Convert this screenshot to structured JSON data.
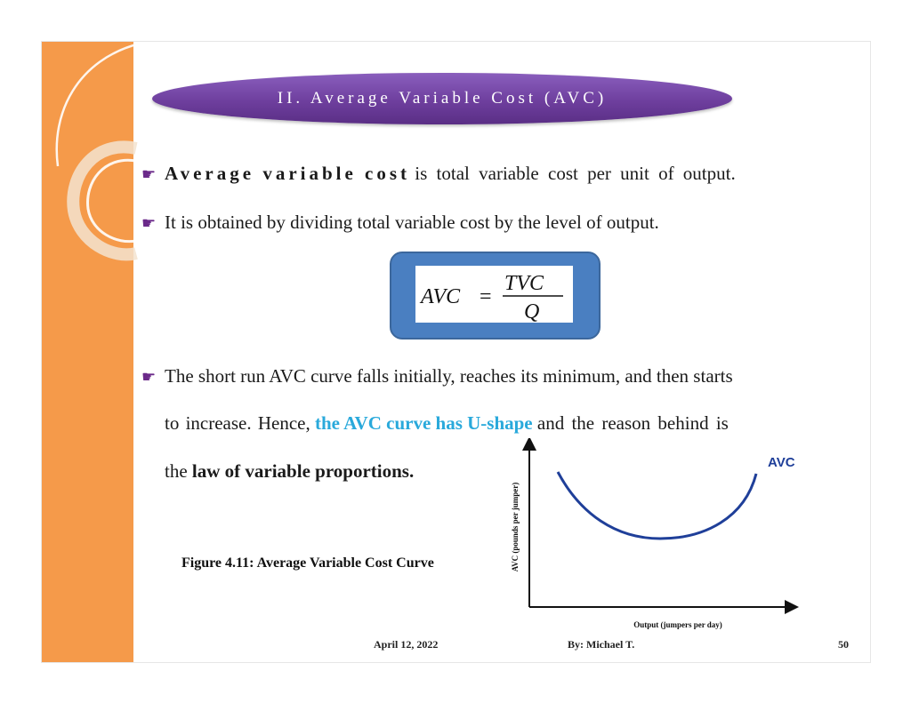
{
  "title": "II. Average Variable Cost (AVC)",
  "bullets": {
    "b1_term": "Average variable cost",
    "b1_rest": "is total variable cost per unit of output.",
    "b2": "It is obtained by dividing total variable cost by the level of output.",
    "b3_line1": "The short run AVC curve falls initially, reaches its minimum, and then starts",
    "b3_line2_pre": "to increase. Hence,",
    "b3_line2_hl": "the AVC curve has U-shape",
    "b3_line2_post": "and the reason behind is",
    "b3_line3_pre": "the",
    "b3_line3_bold": "law of variable proportions."
  },
  "formula": {
    "lhs": "AVC",
    "eq": "=",
    "numerator": "TVC",
    "denominator": "Q"
  },
  "figure_caption": "Figure 4.11: Average Variable Cost Curve",
  "chart_data": {
    "type": "line",
    "ylabel": "AVC (pounds per jumper)",
    "xlabel": "Output (jumpers per day)",
    "series": [
      {
        "name": "AVC",
        "shape": "U-shaped curve"
      }
    ],
    "curve_color": "#1f3f99"
  },
  "footer": {
    "date": "April 12, 2022",
    "author": "By:  Michael T.",
    "page": "50"
  },
  "colors": {
    "side_bar": "#f59a4a",
    "title_pill": "#6e3f9e",
    "formula_box": "#4a7fc1",
    "highlight": "#29a9db"
  }
}
